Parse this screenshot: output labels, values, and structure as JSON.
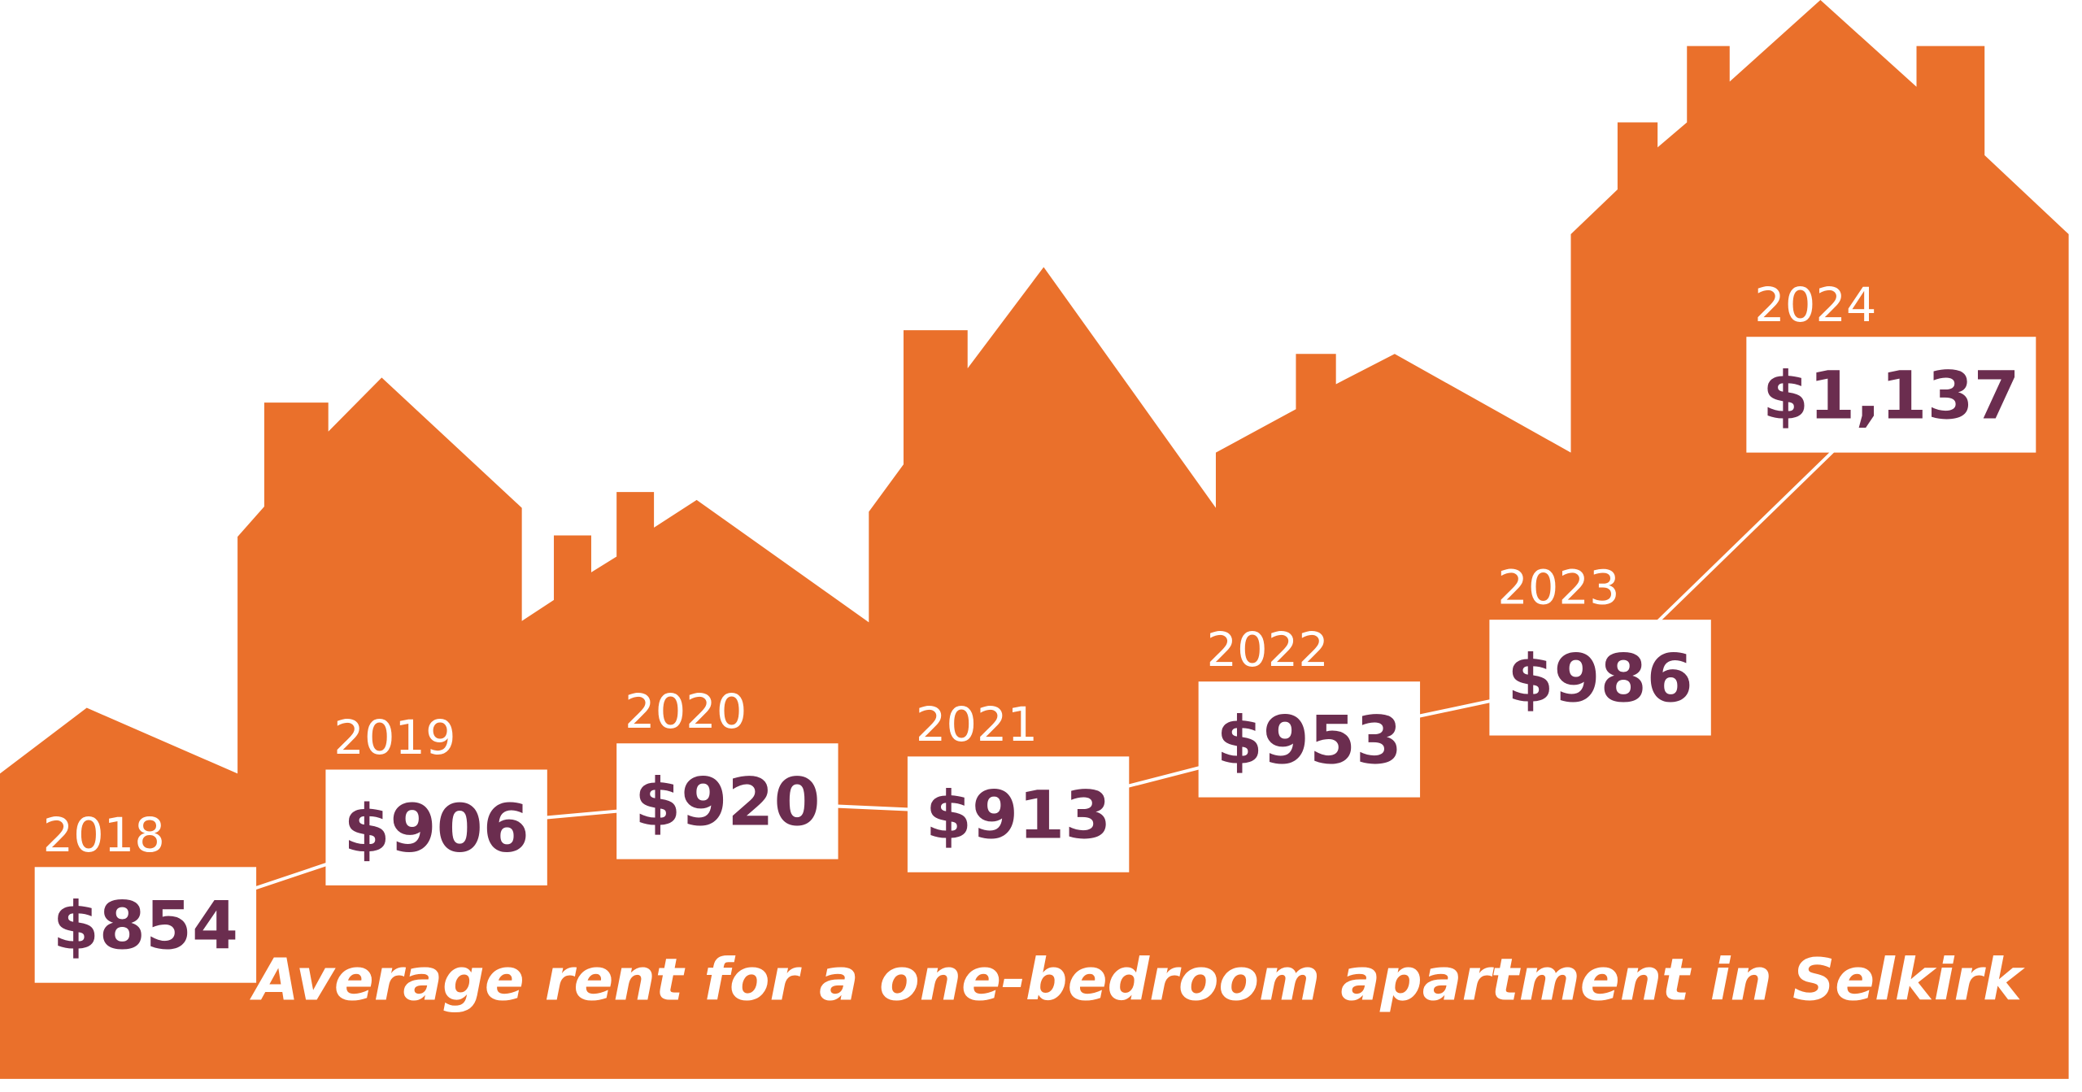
{
  "chart_data": {
    "type": "line",
    "title": "Average rent for a one-bedroom apartment in Selkirk",
    "categories": [
      "2018",
      "2019",
      "2020",
      "2021",
      "2022",
      "2023",
      "2024"
    ],
    "values": [
      854,
      906,
      920,
      913,
      953,
      986,
      1137
    ],
    "value_labels": [
      "$854",
      "$906",
      "$920",
      "$913",
      "$953",
      "$986",
      "$1,137"
    ],
    "color": "#ffffff"
  }
}
